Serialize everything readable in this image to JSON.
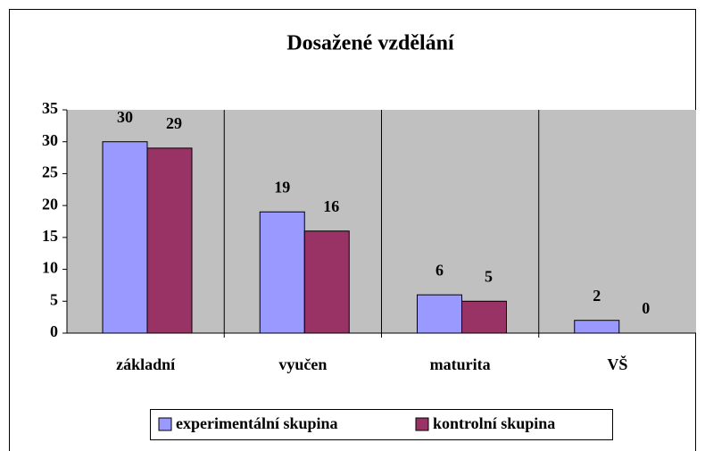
{
  "chart_data": {
    "type": "bar",
    "title": "Dosažené vzdělání",
    "categories": [
      "základní",
      "vyučen",
      "maturita",
      "VŠ"
    ],
    "series": [
      {
        "name": "experimentální skupina",
        "color": "#9999ff",
        "values": [
          30,
          19,
          6,
          2
        ]
      },
      {
        "name": "kontrolní skupina",
        "color": "#993366",
        "values": [
          29,
          16,
          5,
          0
        ]
      }
    ],
    "ylim": [
      0,
      35
    ],
    "yticks": [
      0,
      5,
      10,
      15,
      20,
      25,
      30,
      35
    ],
    "grid": false,
    "plot_background": "#c0c0c0",
    "legend": "bottom"
  }
}
